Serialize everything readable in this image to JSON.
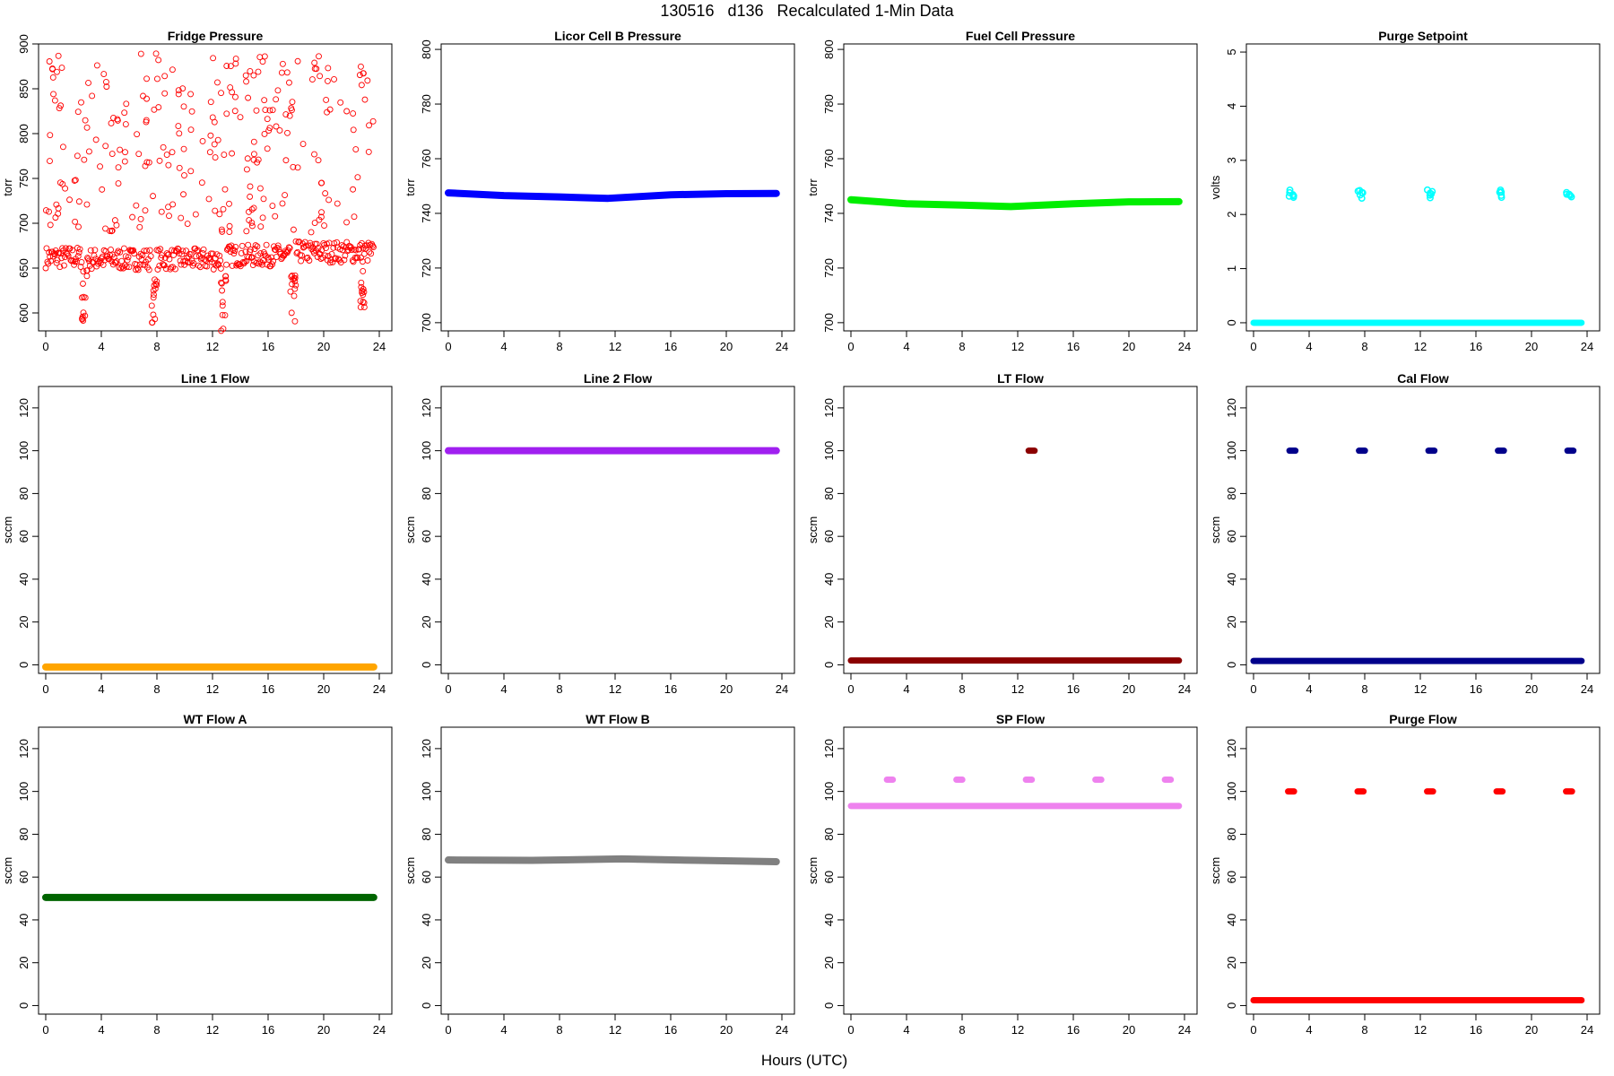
{
  "figure": {
    "title": "130516   d136   Recalculated 1-Min Data",
    "xlabel": "Hours (UTC)"
  },
  "chart_data": [
    {
      "type": "scatter",
      "title": "Fridge Pressure",
      "ylabel": "torr",
      "xlim": [
        0,
        24
      ],
      "ylim": [
        580,
        900
      ],
      "xticks": [
        0,
        4,
        8,
        12,
        16,
        20,
        24
      ],
      "yticks": [
        600,
        650,
        700,
        750,
        800,
        850,
        900
      ],
      "color": "#ff0000",
      "marker": "open-circle",
      "series": [
        {
          "segments": [
            {
              "x": [
                0,
                2.6
              ],
              "y": 662,
              "spread": 12
            },
            {
              "x": [
                3.0,
                7.6
              ],
              "y": 660,
              "spread": 12
            },
            {
              "x": [
                8.0,
                12.6
              ],
              "y": 660,
              "spread": 12
            },
            {
              "x": [
                13.0,
                17.6
              ],
              "y": 664,
              "spread": 12
            },
            {
              "x": [
                18.0,
                23.6
              ],
              "y": 668,
              "spread": 12
            }
          ],
          "dips": [
            {
              "x": 2.8,
              "ymin": 588
            },
            {
              "x": 7.8,
              "ymin": 585
            },
            {
              "x": 12.8,
              "ymin": 580
            },
            {
              "x": 17.8,
              "ymin": 588
            },
            {
              "x": 22.8,
              "ymin": 595
            }
          ],
          "scatter_range": [
            690,
            890
          ]
        }
      ]
    },
    {
      "type": "line",
      "title": "Licor Cell B Pressure",
      "ylabel": "torr",
      "xlim": [
        0,
        24
      ],
      "ylim": [
        697,
        802
      ],
      "xticks": [
        0,
        4,
        8,
        12,
        16,
        20,
        24
      ],
      "yticks": [
        700,
        720,
        740,
        760,
        780,
        800
      ],
      "color": "#0000ff",
      "series": [
        {
          "x": [
            0,
            4,
            8,
            11.5,
            16,
            20,
            23.6
          ],
          "y": [
            747.5,
            746.5,
            746.0,
            745.5,
            746.8,
            747.2,
            747.3
          ]
        }
      ]
    },
    {
      "type": "line",
      "title": "Fuel Cell Pressure",
      "ylabel": "torr",
      "xlim": [
        0,
        24
      ],
      "ylim": [
        697,
        802
      ],
      "xticks": [
        0,
        4,
        8,
        12,
        16,
        20,
        24
      ],
      "yticks": [
        700,
        720,
        740,
        760,
        780,
        800
      ],
      "color": "#00ee00",
      "series": [
        {
          "x": [
            0,
            4,
            8,
            11.5,
            16,
            20,
            23.6
          ],
          "y": [
            745.0,
            743.5,
            743.0,
            742.5,
            743.5,
            744.2,
            744.3
          ]
        }
      ]
    },
    {
      "type": "scatter",
      "title": "Purge Setpoint",
      "ylabel": "volts",
      "xlim": [
        0,
        24
      ],
      "ylim": [
        -0.15,
        5.15
      ],
      "xticks": [
        0,
        4,
        8,
        12,
        16,
        20,
        24
      ],
      "yticks": [
        0,
        1,
        2,
        3,
        4,
        5
      ],
      "color": "#00ffff",
      "series": [
        {
          "baseline": {
            "x": [
              0,
              23.6
            ],
            "y": 0
          },
          "clusters": {
            "x": [
              2.7,
              7.7,
              12.7,
              17.7,
              22.7
            ],
            "y": 2.38
          }
        }
      ]
    },
    {
      "type": "line",
      "title": "Line 1 Flow",
      "ylabel": "sccm",
      "xlim": [
        0,
        24
      ],
      "ylim": [
        -4,
        130
      ],
      "xticks": [
        0,
        4,
        8,
        12,
        16,
        20,
        24
      ],
      "yticks": [
        0,
        20,
        40,
        60,
        80,
        100,
        120
      ],
      "color": "#ffa500",
      "series": [
        {
          "x": [
            0,
            23.6
          ],
          "y": [
            -1,
            -1
          ]
        }
      ]
    },
    {
      "type": "line",
      "title": "Line 2 Flow",
      "ylabel": "sccm",
      "xlim": [
        0,
        24
      ],
      "ylim": [
        -4,
        130
      ],
      "xticks": [
        0,
        4,
        8,
        12,
        16,
        20,
        24
      ],
      "yticks": [
        0,
        20,
        40,
        60,
        80,
        100,
        120
      ],
      "color": "#a020f0",
      "series": [
        {
          "x": [
            0,
            23.6
          ],
          "y": [
            100,
            100
          ]
        }
      ]
    },
    {
      "type": "scatter",
      "title": "LT Flow",
      "ylabel": "sccm",
      "xlim": [
        0,
        24
      ],
      "ylim": [
        -4,
        130
      ],
      "xticks": [
        0,
        4,
        8,
        12,
        16,
        20,
        24
      ],
      "yticks": [
        0,
        20,
        40,
        60,
        80,
        100,
        120
      ],
      "color": "#8b0000",
      "series": [
        {
          "baseline": {
            "x": [
              0,
              23.6
            ],
            "y": 2
          },
          "clusters": {
            "x": [
              13.0
            ],
            "y": 100
          }
        }
      ]
    },
    {
      "type": "scatter",
      "title": "Cal Flow",
      "ylabel": "sccm",
      "xlim": [
        0,
        24
      ],
      "ylim": [
        -4,
        130
      ],
      "xticks": [
        0,
        4,
        8,
        12,
        16,
        20,
        24
      ],
      "yticks": [
        0,
        20,
        40,
        60,
        80,
        100,
        120
      ],
      "color": "#00008b",
      "series": [
        {
          "baseline": {
            "x": [
              0,
              23.6
            ],
            "y": 1.8
          },
          "clusters": {
            "x": [
              2.8,
              7.8,
              12.8,
              17.8,
              22.8
            ],
            "y": 100
          }
        }
      ]
    },
    {
      "type": "line",
      "title": "WT Flow A",
      "ylabel": "sccm",
      "xlim": [
        0,
        24
      ],
      "ylim": [
        -4,
        130
      ],
      "xticks": [
        0,
        4,
        8,
        12,
        16,
        20,
        24
      ],
      "yticks": [
        0,
        20,
        40,
        60,
        80,
        100,
        120
      ],
      "color": "#006400",
      "series": [
        {
          "x": [
            0,
            23.6
          ],
          "y": [
            50.5,
            50.5
          ]
        }
      ]
    },
    {
      "type": "line",
      "title": "WT Flow B",
      "ylabel": "sccm",
      "xlim": [
        0,
        24
      ],
      "ylim": [
        -4,
        130
      ],
      "xticks": [
        0,
        4,
        8,
        12,
        16,
        20,
        24
      ],
      "yticks": [
        0,
        20,
        40,
        60,
        80,
        100,
        120
      ],
      "color": "#808080",
      "series": [
        {
          "x": [
            0,
            6,
            12.5,
            18,
            23.6
          ],
          "y": [
            68,
            67.8,
            68.5,
            67.8,
            67.2
          ]
        }
      ]
    },
    {
      "type": "scatter",
      "title": "SP Flow",
      "ylabel": "sccm",
      "xlim": [
        0,
        24
      ],
      "ylim": [
        -4,
        130
      ],
      "xticks": [
        0,
        4,
        8,
        12,
        16,
        20,
        24
      ],
      "yticks": [
        0,
        20,
        40,
        60,
        80,
        100,
        120
      ],
      "color": "#ee82ee",
      "series": [
        {
          "baseline": {
            "x": [
              0,
              23.6
            ],
            "y": 93.2
          },
          "clusters": {
            "x": [
              2.8,
              7.8,
              12.8,
              17.8,
              22.8
            ],
            "y": 105.5
          }
        }
      ]
    },
    {
      "type": "scatter",
      "title": "Purge Flow",
      "ylabel": "sccm",
      "xlim": [
        0,
        24
      ],
      "ylim": [
        -4,
        130
      ],
      "xticks": [
        0,
        4,
        8,
        12,
        16,
        20,
        24
      ],
      "yticks": [
        0,
        20,
        40,
        60,
        80,
        100,
        120
      ],
      "color": "#ff0000",
      "series": [
        {
          "baseline": {
            "x": [
              0,
              23.6
            ],
            "y": 2.5
          },
          "clusters": {
            "x": [
              2.7,
              7.7,
              12.7,
              17.7,
              22.7
            ],
            "y": 100
          }
        }
      ]
    }
  ]
}
